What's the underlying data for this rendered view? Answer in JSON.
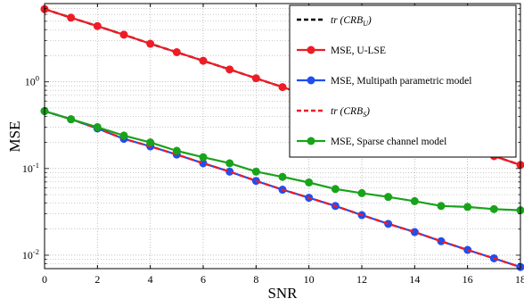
{
  "chart_data": {
    "type": "line",
    "xlabel": "SNR",
    "ylabel": "MSE",
    "xlim": [
      0,
      18
    ],
    "ylim": [
      0.007,
      8
    ],
    "y_scale": "log",
    "grid": true,
    "legend_position": "top-right",
    "x_ticks": [
      0,
      2,
      4,
      6,
      8,
      10,
      12,
      14,
      16,
      18
    ],
    "y_ticks": [
      {
        "value": 1,
        "base": "10",
        "exp": "0"
      },
      {
        "value": 0.1,
        "base": "10",
        "exp": "-1"
      },
      {
        "value": 0.01,
        "base": "10",
        "exp": "-2"
      }
    ],
    "x": [
      0,
      1,
      2,
      3,
      4,
      5,
      6,
      7,
      8,
      9,
      10,
      11,
      12,
      13,
      14,
      15,
      16,
      17,
      18
    ],
    "series": [
      {
        "name": "tr (CRB_U)",
        "label_prefix": "tr",
        "label_open": " (CRB",
        "label_sub": "U",
        "label_close": ")",
        "color": "#000000",
        "line_style": "dashed",
        "marker": "none",
        "values": [
          6.9,
          5.5,
          4.4,
          3.5,
          2.75,
          2.2,
          1.75,
          1.39,
          1.1,
          0.87,
          0.69,
          0.55,
          0.44,
          0.35,
          0.275,
          0.22,
          0.175,
          0.139,
          0.11
        ]
      },
      {
        "name": "MSE, U-LSE",
        "color": "#ee1c25",
        "line_style": "solid",
        "marker": "circle",
        "values": [
          6.9,
          5.5,
          4.4,
          3.5,
          2.75,
          2.2,
          1.75,
          1.39,
          1.1,
          0.87,
          0.69,
          0.55,
          0.44,
          0.35,
          0.275,
          0.22,
          0.175,
          0.139,
          0.11
        ]
      },
      {
        "name": "MSE, Multipath parametric model",
        "color": "#1f4ef0",
        "line_style": "solid",
        "marker": "circle",
        "values": [
          0.46,
          0.37,
          0.29,
          0.22,
          0.18,
          0.145,
          0.115,
          0.092,
          0.072,
          0.057,
          0.046,
          0.037,
          0.029,
          0.023,
          0.0185,
          0.0145,
          0.0115,
          0.0092,
          0.0073
        ]
      },
      {
        "name": "tr (CRB_S)",
        "label_prefix": "tr",
        "label_open": " (CRB",
        "label_sub": "S",
        "label_close": ")",
        "color": "#ee1c25",
        "line_style": "dashed",
        "marker": "none",
        "values": [
          0.46,
          0.37,
          0.29,
          0.22,
          0.18,
          0.145,
          0.115,
          0.092,
          0.072,
          0.057,
          0.046,
          0.037,
          0.029,
          0.023,
          0.0185,
          0.0145,
          0.0115,
          0.0092,
          0.0073
        ]
      },
      {
        "name": "MSE, Sparse channel model",
        "color": "#18a31a",
        "line_style": "solid",
        "marker": "circle",
        "values": [
          0.46,
          0.37,
          0.3,
          0.24,
          0.2,
          0.16,
          0.135,
          0.115,
          0.092,
          0.08,
          0.069,
          0.058,
          0.052,
          0.047,
          0.042,
          0.037,
          0.036,
          0.034,
          0.033
        ]
      }
    ]
  }
}
